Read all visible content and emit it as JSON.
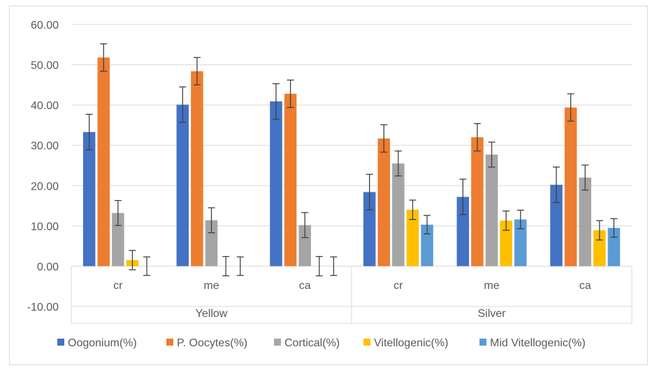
{
  "chart_data": {
    "type": "bar",
    "title": "",
    "xlabel": "",
    "ylabel": "",
    "ylim": [
      -10,
      60
    ],
    "yticks": [
      60,
      50,
      40,
      30,
      20,
      10,
      0,
      -10
    ],
    "ytick_labels": [
      "60.00",
      "50.00",
      "40.00",
      "30.00",
      "20.00",
      "10.00",
      "0.00",
      "-10.00"
    ],
    "grid": true,
    "legend_position": "bottom",
    "groups": [
      {
        "name": "Yellow",
        "categories": [
          "cr",
          "me",
          "ca"
        ]
      },
      {
        "name": "Silver",
        "categories": [
          "cr",
          "me",
          "ca"
        ]
      }
    ],
    "series": [
      {
        "name": "Oogonium(%)",
        "color": "#4472c4",
        "values": [
          33.3,
          40.1,
          40.9,
          18.4,
          17.2,
          20.2
        ],
        "errors": [
          4.4,
          4.4,
          4.4,
          4.4,
          4.4,
          4.4
        ]
      },
      {
        "name": "P. Oocytes(%)",
        "color": "#ed7d31",
        "values": [
          51.8,
          48.4,
          42.8,
          31.7,
          32.0,
          39.4
        ],
        "errors": [
          3.4,
          3.4,
          3.4,
          3.4,
          3.4,
          3.4
        ]
      },
      {
        "name": "Cortical(%)",
        "color": "#a5a5a5",
        "values": [
          13.2,
          11.4,
          10.2,
          25.5,
          27.7,
          22.0
        ],
        "errors": [
          3.1,
          3.1,
          3.1,
          3.1,
          3.1,
          3.1
        ]
      },
      {
        "name": "Vitellogenic(%)",
        "color": "#ffc000",
        "values": [
          1.5,
          0,
          0,
          14.0,
          11.3,
          8.9
        ],
        "errors": [
          2.4,
          2.4,
          2.4,
          2.4,
          2.4,
          2.4
        ]
      },
      {
        "name": "Mid Vitellogenic(%)",
        "color": "#5b9bd5",
        "values": [
          0,
          0,
          0,
          10.3,
          11.6,
          9.5
        ],
        "errors": [
          2.3,
          2.3,
          2.3,
          2.3,
          2.3,
          2.3
        ]
      }
    ]
  }
}
